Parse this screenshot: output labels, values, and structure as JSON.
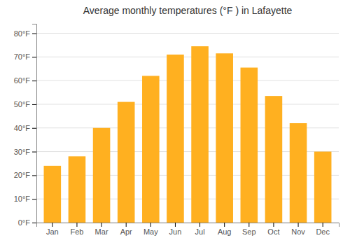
{
  "chart_data": {
    "type": "bar",
    "title": "Average monthly temperatures (°F ) in Lafayette",
    "categories": [
      "Jan",
      "Feb",
      "Mar",
      "Apr",
      "May",
      "Jun",
      "Jul",
      "Aug",
      "Sep",
      "Oct",
      "Nov",
      "Dec"
    ],
    "values": [
      24,
      28,
      40,
      51,
      62,
      71,
      74.5,
      71.5,
      65.5,
      53.5,
      42,
      30
    ],
    "color": "#FFB020",
    "ylim": [
      0,
      84
    ],
    "yticks": [
      {
        "value": 0,
        "label": "0°F"
      },
      {
        "value": 10,
        "label": "10°F"
      },
      {
        "value": 20,
        "label": "20°F"
      },
      {
        "value": 30,
        "label": "30°F"
      },
      {
        "value": 40,
        "label": "40°F"
      },
      {
        "value": 50,
        "label": "50°F"
      },
      {
        "value": 60,
        "label": "60°F"
      },
      {
        "value": 70,
        "label": "70°F"
      },
      {
        "value": 80,
        "label": "80°F"
      }
    ],
    "grid": true
  }
}
